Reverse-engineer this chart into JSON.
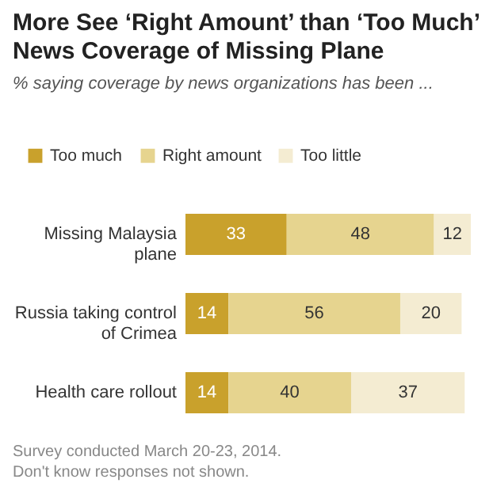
{
  "chart_data": {
    "type": "bar",
    "orientation": "horizontal",
    "stacked": true,
    "data_labels": true,
    "legend": "top left",
    "grid": false,
    "title": "More See ‘Right Amount’ than ‘Too Much’ News Coverage of Missing Plane",
    "subtitle": "% saying coverage by news organizations has been ...",
    "categories": [
      "Missing Malaysia plane",
      "Russia taking control of Crimea",
      "Health care rollout"
    ],
    "series": [
      {
        "name": "Too much",
        "color": "#c9a12c",
        "values": [
          33,
          14,
          14
        ]
      },
      {
        "name": "Right amount",
        "color": "#e6d48f",
        "values": [
          48,
          56,
          40
        ]
      },
      {
        "name": "Too little",
        "color": "#f4ecd2",
        "values": [
          12,
          20,
          37
        ]
      }
    ],
    "annotations": [
      "Survey conducted March 20-23, 2014.",
      "Don't know responses not shown."
    ]
  }
}
